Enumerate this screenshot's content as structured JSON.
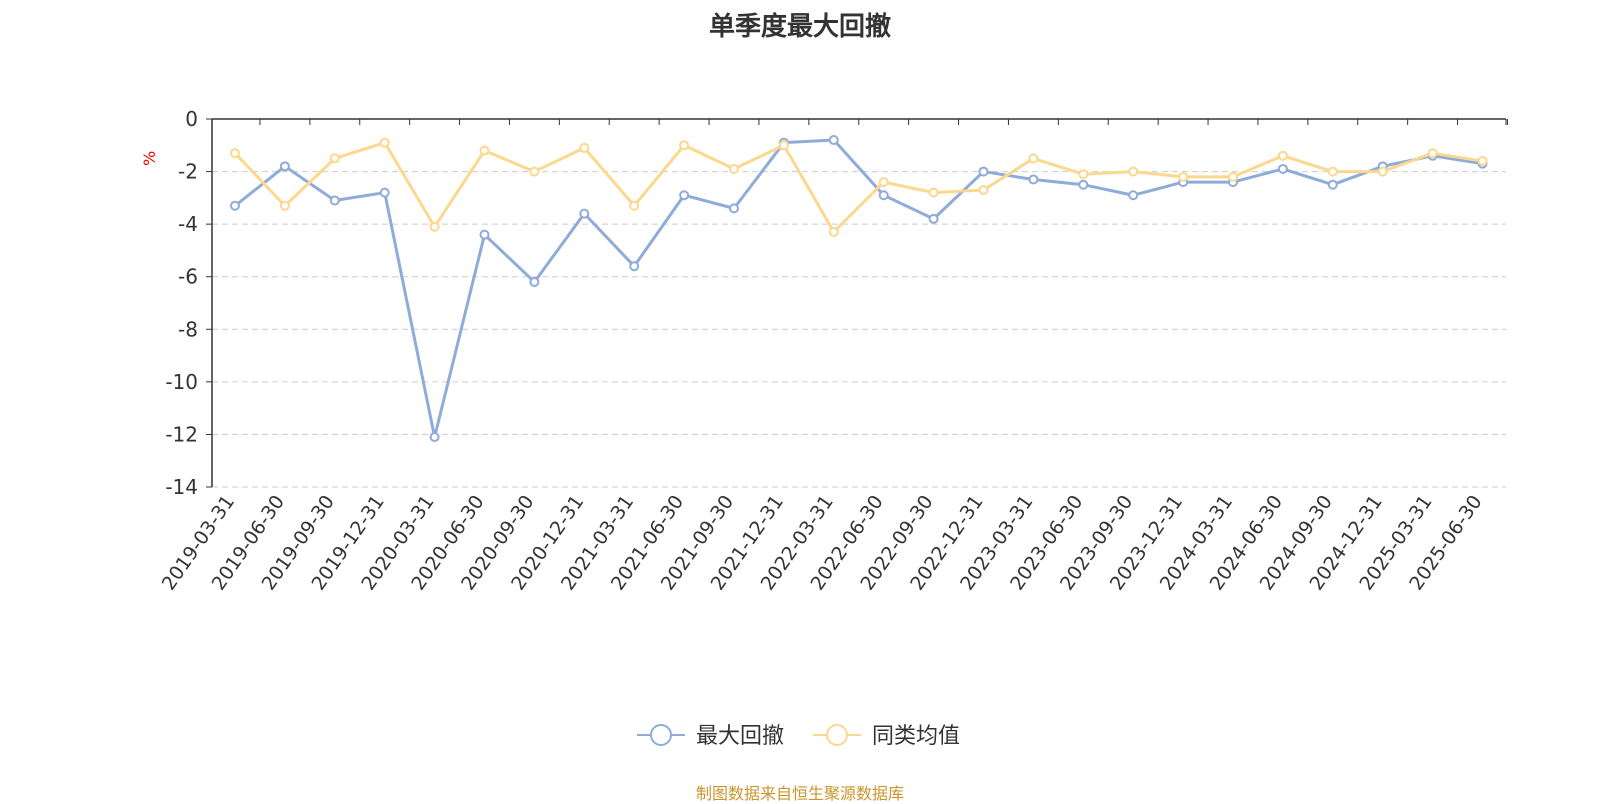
{
  "chart_data": {
    "type": "line",
    "title": "单季度最大回撤",
    "ylabel": "%",
    "xlabel": "",
    "ylim": [
      -14,
      0
    ],
    "yticks": [
      0,
      -2,
      -4,
      -6,
      -8,
      -10,
      -12,
      -14
    ],
    "grid": true,
    "legend_position": "bottom",
    "categories": [
      "2019-03-31",
      "2019-06-30",
      "2019-09-30",
      "2019-12-31",
      "2020-03-31",
      "2020-06-30",
      "2020-09-30",
      "2020-12-31",
      "2021-03-31",
      "2021-06-30",
      "2021-09-30",
      "2021-12-31",
      "2022-03-31",
      "2022-06-30",
      "2022-09-30",
      "2022-12-31",
      "2023-03-31",
      "2023-06-30",
      "2023-09-30",
      "2023-12-31",
      "2024-03-31",
      "2024-06-30",
      "2024-09-30",
      "2024-12-31",
      "2025-03-31",
      "2025-06-30"
    ],
    "series": [
      {
        "name": "最大回撤",
        "color": "#8eabd9",
        "values": [
          -3.3,
          -1.8,
          -3.1,
          -2.8,
          -12.1,
          -4.4,
          -6.2,
          -3.6,
          -5.6,
          -2.9,
          -3.4,
          -0.9,
          -0.8,
          -2.9,
          -3.8,
          -2.0,
          -2.3,
          -2.5,
          -2.9,
          -2.4,
          -2.4,
          -1.9,
          -2.5,
          -1.8,
          -1.4,
          -1.7
        ]
      },
      {
        "name": "同类均值",
        "color": "#fcd88e",
        "values": [
          -1.3,
          -3.3,
          -1.5,
          -0.9,
          -4.1,
          -1.2,
          -2.0,
          -1.1,
          -3.3,
          -1.0,
          -1.9,
          -1.0,
          -4.3,
          -2.4,
          -2.8,
          -2.7,
          -1.5,
          -2.1,
          -2.0,
          -2.2,
          -2.2,
          -1.4,
          -2.0,
          -2.0,
          -1.3,
          -1.6
        ]
      }
    ]
  },
  "source": "制图数据来自恒生聚源数据库",
  "colors": {
    "axis": "#333333",
    "grid": "#cccccc",
    "ylabel": "#ff0000",
    "source": "#c8962d"
  }
}
